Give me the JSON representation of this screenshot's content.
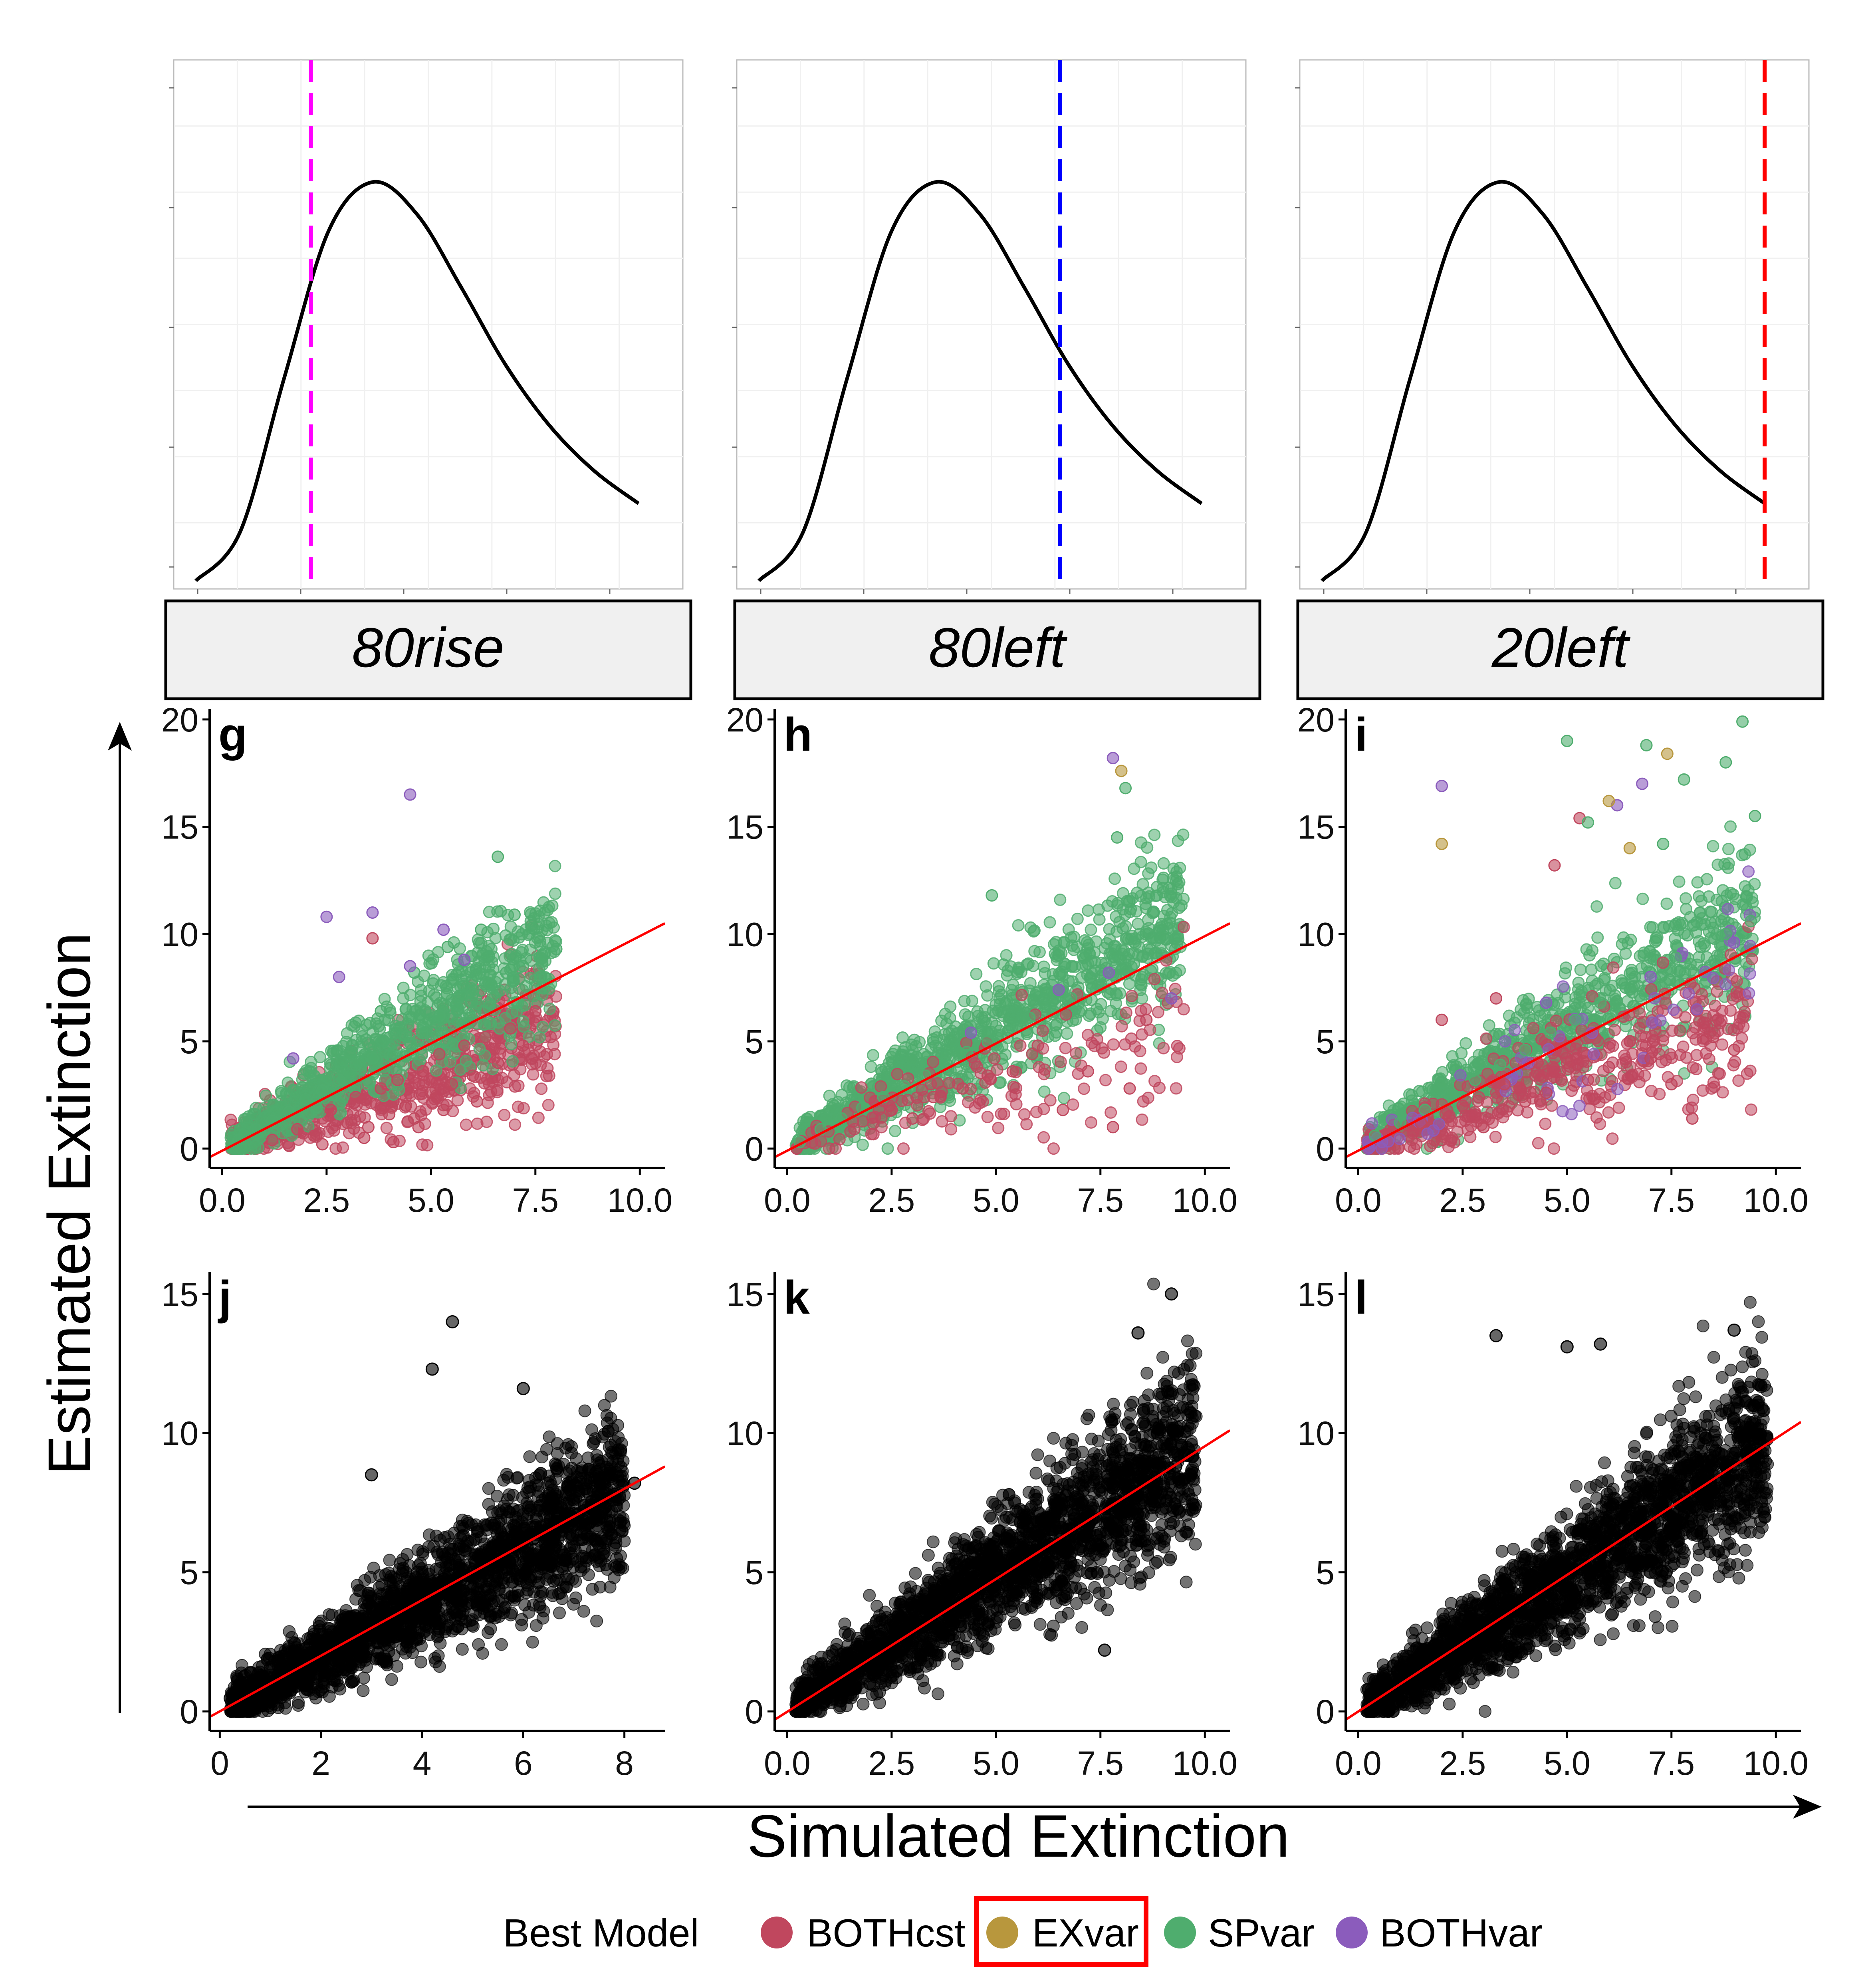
{
  "figure": {
    "y_axis_title": "Estimated Extinction",
    "x_axis_title": "Simulated Extinction"
  },
  "legend": {
    "title": "Best Model",
    "placement": "bottom",
    "items": [
      {
        "label": "BOTHcst",
        "color": "#c0475e"
      },
      {
        "label": "EXvar",
        "color": "#b8973d",
        "highlighted": true,
        "highlight_color": "#ff0000"
      },
      {
        "label": "SPvar",
        "color": "#4fad6e"
      },
      {
        "label": "BOTHvar",
        "color": "#8b5cbc"
      }
    ]
  },
  "colors": {
    "fit_line": "#ff0000",
    "curve": "#000000",
    "points_black": "#000000",
    "strip_fill": "#f0f0f0"
  },
  "chart_data": [
    {
      "panel": "density-80rise",
      "type": "line",
      "strip_label": "80rise",
      "description_only": false,
      "x": [
        0,
        1,
        2,
        3,
        4,
        5,
        6,
        7,
        8,
        9,
        10
      ],
      "y": [
        0.02,
        0.14,
        0.52,
        0.88,
        1.0,
        0.92,
        0.74,
        0.55,
        0.4,
        0.29,
        0.21
      ],
      "vline": {
        "x": 2.6,
        "color": "#ff00ff",
        "style": "dashed"
      },
      "ylim": [
        0,
        1.3
      ],
      "xlim": [
        -0.5,
        11
      ],
      "grid": true
    },
    {
      "panel": "density-80left",
      "type": "line",
      "strip_label": "80left",
      "x": [
        0,
        1,
        2,
        3,
        4,
        5,
        6,
        7,
        8,
        9,
        10
      ],
      "y": [
        0.02,
        0.14,
        0.52,
        0.88,
        1.0,
        0.92,
        0.74,
        0.55,
        0.4,
        0.29,
        0.21
      ],
      "vline": {
        "x": 6.8,
        "color": "#0000ff",
        "style": "dashed"
      },
      "ylim": [
        0,
        1.3
      ],
      "xlim": [
        -0.5,
        11
      ],
      "grid": true
    },
    {
      "panel": "density-20left",
      "type": "line",
      "strip_label": "20left",
      "x": [
        0,
        1,
        2,
        3,
        4,
        5,
        6,
        7,
        8,
        9,
        10
      ],
      "y": [
        0.02,
        0.14,
        0.52,
        0.88,
        1.0,
        0.92,
        0.74,
        0.55,
        0.4,
        0.29,
        0.21
      ],
      "vline": {
        "x": 10.0,
        "color": "#ff0000",
        "style": "dashed"
      },
      "ylim": [
        0,
        1.3
      ],
      "xlim": [
        -0.5,
        11
      ],
      "grid": true
    },
    {
      "panel": "g",
      "type": "scatter",
      "label": "g",
      "xlim": [
        -0.3,
        10.6
      ],
      "ylim": [
        -0.9,
        20.5
      ],
      "xticks": [
        "0.0",
        "2.5",
        "5.0",
        "7.5",
        "10.0"
      ],
      "xtick_values": [
        0,
        2.5,
        5,
        7.5,
        10
      ],
      "yticks": [
        "0",
        "5",
        "10",
        "15",
        "20"
      ],
      "ytick_values": [
        0,
        5,
        10,
        15,
        20
      ],
      "fit_line": {
        "x": [
          -0.3,
          10.6
        ],
        "y": [
          -0.4,
          10.5
        ]
      },
      "groups": [
        {
          "model": "BOTHcst",
          "x": [
            1.2,
            1.8,
            2.2,
            2.6,
            3.0,
            3.2,
            3.5,
            3.8,
            4.0,
            4.2,
            4.4,
            4.6,
            4.8,
            5.0,
            5.2,
            5.5,
            5.8,
            6.0,
            6.3,
            6.6,
            6.9,
            7.2,
            7.5,
            2.4,
            3.4,
            4.1,
            4.7,
            5.3,
            6.1,
            3.6
          ],
          "y": [
            0.4,
            0.9,
            0.6,
            1.8,
            1.2,
            2.4,
            1.0,
            2.8,
            1.6,
            3.2,
            2.0,
            1.4,
            3.6,
            2.6,
            4.4,
            3.0,
            4.8,
            3.4,
            5.2,
            4.0,
            5.6,
            4.8,
            6.4,
            0.2,
            0.5,
            0.3,
            1.0,
            1.8,
            2.2,
            9.8
          ]
        },
        {
          "model": "SPvar",
          "x": [
            0.4,
            0.8,
            1.2,
            1.6,
            2.0,
            2.4,
            2.8,
            3.2,
            3.6,
            4.0,
            4.4,
            4.8,
            5.2,
            5.6,
            6.0,
            6.4,
            6.8,
            7.2,
            7.6,
            8.0,
            4.6,
            5.4,
            6.2,
            7.0,
            3.8,
            6.6
          ],
          "y": [
            0.4,
            0.9,
            1.3,
            1.7,
            2.3,
            2.7,
            3.2,
            3.9,
            4.2,
            4.8,
            5.2,
            5.7,
            6.2,
            6.7,
            7.2,
            7.7,
            8.2,
            8.5,
            8.9,
            9.3,
            8.2,
            9.4,
            10.2,
            10.9,
            6.4,
            13.6
          ]
        },
        {
          "model": "BOTHvar",
          "x": [
            1.7,
            2.5,
            2.8,
            3.6,
            4.5,
            5.3,
            5.8,
            4.5
          ],
          "y": [
            4.2,
            10.8,
            8.0,
            11.0,
            8.5,
            10.2,
            8.8,
            16.5
          ]
        },
        {
          "model": "EXvar",
          "x": [],
          "y": []
        }
      ]
    },
    {
      "panel": "h",
      "type": "scatter",
      "label": "h",
      "xlim": [
        -0.3,
        10.6
      ],
      "ylim": [
        -0.9,
        20.5
      ],
      "xticks": [
        "0.0",
        "2.5",
        "5.0",
        "7.5",
        "10.0"
      ],
      "xtick_values": [
        0,
        2.5,
        5,
        7.5,
        10
      ],
      "yticks": [
        "0",
        "5",
        "10",
        "15",
        "20"
      ],
      "ytick_values": [
        0,
        5,
        10,
        15,
        20
      ],
      "fit_line": {
        "x": [
          -0.3,
          10.6
        ],
        "y": [
          -0.4,
          10.5
        ]
      },
      "groups": [
        {
          "model": "BOTHcst",
          "x": [
            2.5,
            3.5,
            4.2,
            4.8,
            5.4,
            6.0,
            6.6,
            7.2,
            7.8,
            8.6,
            8.2,
            3.0
          ],
          "y": [
            1.8,
            2.4,
            2.8,
            3.4,
            3.6,
            4.8,
            1.8,
            3.6,
            1.0,
            6.0,
            2.8,
            1.4
          ]
        },
        {
          "model": "SPvar",
          "x": [
            0.3,
            0.8,
            1.3,
            1.8,
            2.3,
            2.8,
            3.3,
            3.8,
            4.3,
            4.8,
            5.3,
            5.8,
            6.3,
            6.8,
            7.3,
            7.8,
            8.3,
            8.8,
            9.3,
            4.9,
            7.9,
            8.1
          ],
          "y": [
            0.3,
            0.9,
            1.4,
            1.9,
            2.4,
            2.9,
            3.4,
            4.0,
            4.5,
            5.0,
            5.5,
            6.1,
            6.6,
            7.0,
            7.5,
            8.1,
            8.6,
            9.1,
            9.8,
            11.8,
            14.5,
            16.8
          ]
        },
        {
          "model": "BOTHvar",
          "x": [
            4.4,
            6.5,
            7.7,
            9.2,
            7.8
          ],
          "y": [
            5.4,
            7.4,
            8.2,
            7.0,
            18.2
          ]
        },
        {
          "model": "EXvar",
          "x": [
            8.0
          ],
          "y": [
            17.6
          ]
        }
      ]
    },
    {
      "panel": "i",
      "type": "scatter",
      "label": "i",
      "xlim": [
        -0.3,
        10.6
      ],
      "ylim": [
        -0.9,
        20.5
      ],
      "xticks": [
        "0.0",
        "2.5",
        "5.0",
        "7.5",
        "10.0"
      ],
      "xtick_values": [
        0,
        2.5,
        5,
        7.5,
        10
      ],
      "yticks": [
        "0",
        "5",
        "10",
        "15",
        "20"
      ],
      "ytick_values": [
        0,
        5,
        10,
        15,
        20
      ],
      "fit_line": {
        "x": [
          -0.3,
          10.6
        ],
        "y": [
          -0.4,
          10.5
        ]
      },
      "groups": [
        {
          "model": "BOTHcst",
          "x": [
            1.5,
            2.0,
            2.5,
            3.0,
            3.5,
            4.0,
            4.5,
            5.0,
            5.5,
            6.0,
            6.5,
            7.0,
            7.5,
            8.0,
            8.5,
            9.0,
            2.0,
            3.3,
            5.3,
            4.7
          ],
          "y": [
            1.2,
            0.4,
            2.0,
            1.0,
            3.0,
            2.2,
            2.6,
            4.0,
            3.2,
            3.8,
            5.0,
            4.2,
            3.0,
            1.4,
            5.2,
            4.6,
            6.0,
            7.0,
            15.4,
            13.2
          ]
        },
        {
          "model": "SPvar",
          "x": [
            0.4,
            1.0,
            1.6,
            2.2,
            2.8,
            3.4,
            4.0,
            4.6,
            5.2,
            5.8,
            6.4,
            7.0,
            7.6,
            8.2,
            8.8,
            9.4,
            5.0,
            6.9,
            7.8,
            8.8,
            9.2,
            9.5,
            5.5,
            7.3
          ],
          "y": [
            0.6,
            1.2,
            1.8,
            2.5,
            3.2,
            3.9,
            4.6,
            5.4,
            6.0,
            6.8,
            7.5,
            8.2,
            8.9,
            9.4,
            10.0,
            10.6,
            19.0,
            18.8,
            17.2,
            18.0,
            19.9,
            15.5,
            15.2,
            14.2
          ]
        },
        {
          "model": "BOTHvar",
          "x": [
            2.0,
            4.5,
            6.2,
            6.8,
            3.8,
            7.0,
            9.0
          ],
          "y": [
            16.9,
            6.8,
            16.0,
            17.0,
            3.5,
            8.0,
            9.6
          ]
        },
        {
          "model": "EXvar",
          "x": [
            2.0,
            6.0,
            7.4,
            6.5
          ],
          "y": [
            14.2,
            16.2,
            18.4,
            14.0
          ]
        }
      ]
    },
    {
      "panel": "j",
      "type": "scatter",
      "label": "j",
      "xlim": [
        -0.2,
        8.8
      ],
      "ylim": [
        -0.7,
        15.8
      ],
      "xticks": [
        "0",
        "2",
        "4",
        "6",
        "8"
      ],
      "xtick_values": [
        0,
        2,
        4,
        6,
        8
      ],
      "yticks": [
        "0",
        "5",
        "10",
        "15"
      ],
      "ytick_values": [
        0,
        5,
        10,
        15
      ],
      "fit_line": {
        "x": [
          -0.2,
          8.8
        ],
        "y": [
          -0.2,
          8.8
        ]
      },
      "groups": [
        {
          "model": "all",
          "x": [
            0.3,
            0.7,
            1.0,
            1.4,
            1.8,
            2.2,
            2.6,
            3.0,
            3.4,
            3.8,
            4.2,
            4.6,
            5.0,
            5.4,
            5.8,
            6.2,
            6.6,
            7.0,
            7.4,
            7.8,
            8.2,
            4.6,
            4.2,
            3.0,
            6.0
          ],
          "y": [
            0.3,
            0.7,
            1.0,
            1.5,
            1.8,
            2.2,
            2.7,
            3.0,
            3.5,
            3.8,
            4.2,
            4.7,
            5.0,
            5.4,
            5.9,
            6.2,
            6.6,
            7.1,
            7.4,
            7.8,
            8.2,
            14.0,
            12.3,
            8.5,
            11.6
          ]
        }
      ]
    },
    {
      "panel": "k",
      "type": "scatter",
      "label": "k",
      "xlim": [
        -0.3,
        10.6
      ],
      "ylim": [
        -0.7,
        15.8
      ],
      "xticks": [
        "0.0",
        "2.5",
        "5.0",
        "7.5",
        "10.0"
      ],
      "xtick_values": [
        0,
        2.5,
        5,
        7.5,
        10
      ],
      "yticks": [
        "0",
        "5",
        "10",
        "15"
      ],
      "ytick_values": [
        0,
        5,
        10,
        15
      ],
      "fit_line": {
        "x": [
          -0.3,
          10.6
        ],
        "y": [
          -0.3,
          10.1
        ]
      },
      "groups": [
        {
          "model": "all",
          "x": [
            0.3,
            0.8,
            1.3,
            1.8,
            2.3,
            2.8,
            3.3,
            3.8,
            4.3,
            4.8,
            5.3,
            5.8,
            6.3,
            6.8,
            7.3,
            7.8,
            8.3,
            8.8,
            9.3,
            9.6,
            9.2,
            8.4,
            7.6
          ],
          "y": [
            0.3,
            0.8,
            1.2,
            1.7,
            2.2,
            2.7,
            3.1,
            3.6,
            4.1,
            4.6,
            5.0,
            5.5,
            6.0,
            6.5,
            6.9,
            7.4,
            7.9,
            8.4,
            8.8,
            9.2,
            15.0,
            13.6,
            2.2
          ]
        }
      ]
    },
    {
      "panel": "l",
      "type": "scatter",
      "label": "l",
      "xlim": [
        -0.3,
        10.6
      ],
      "ylim": [
        -0.7,
        15.8
      ],
      "xticks": [
        "0.0",
        "2.5",
        "5.0",
        "7.5",
        "10.0"
      ],
      "xtick_values": [
        0,
        2.5,
        5,
        7.5,
        10
      ],
      "yticks": [
        "0",
        "5",
        "10",
        "15"
      ],
      "ytick_values": [
        0,
        5,
        10,
        15
      ],
      "fit_line": {
        "x": [
          -0.3,
          10.6
        ],
        "y": [
          -0.3,
          10.4
        ]
      },
      "groups": [
        {
          "model": "all",
          "x": [
            0.3,
            0.8,
            1.3,
            1.8,
            2.3,
            2.8,
            3.3,
            3.8,
            4.3,
            4.8,
            5.3,
            5.8,
            6.3,
            6.8,
            7.3,
            7.8,
            8.3,
            8.8,
            9.3,
            9.6,
            3.3,
            5.0,
            5.8,
            9.0
          ],
          "y": [
            0.3,
            0.8,
            1.3,
            1.8,
            2.3,
            2.8,
            3.3,
            3.8,
            4.3,
            4.8,
            5.3,
            5.8,
            6.3,
            6.8,
            7.3,
            7.8,
            8.3,
            8.8,
            9.3,
            9.8,
            13.5,
            13.1,
            13.2,
            13.7
          ]
        }
      ]
    }
  ]
}
